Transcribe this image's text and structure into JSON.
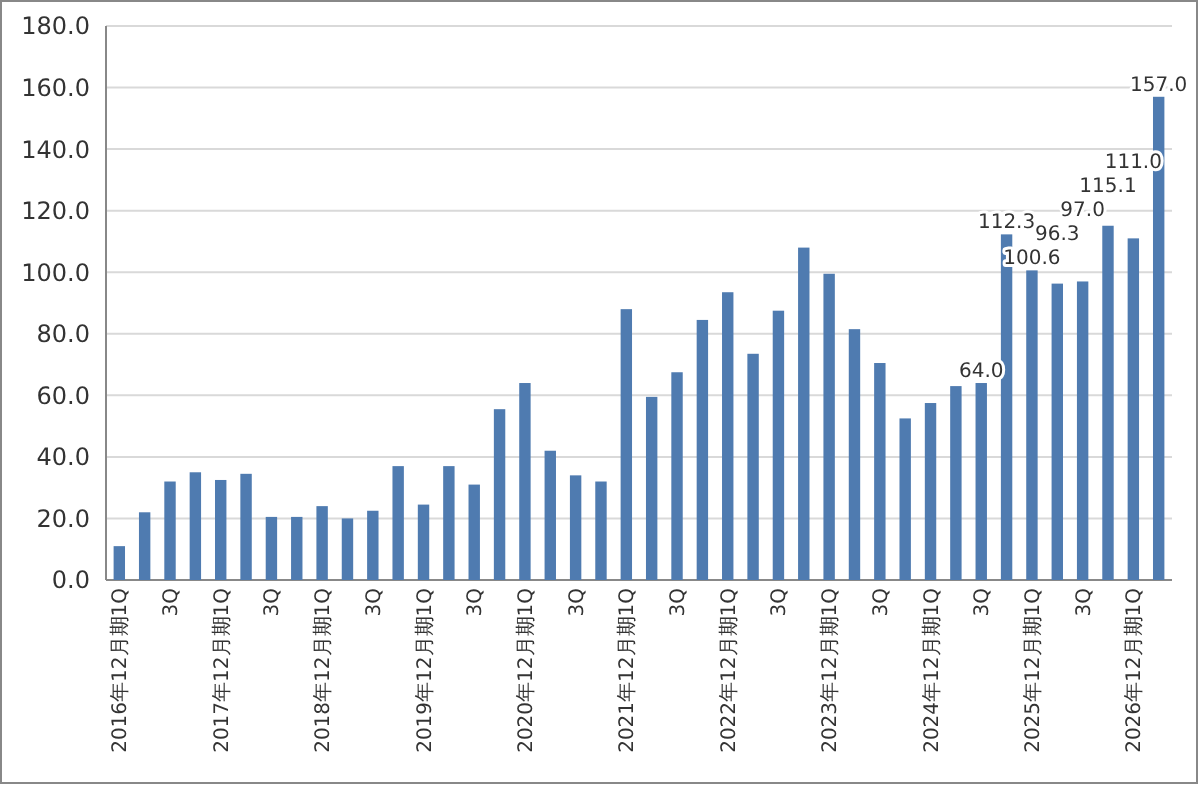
{
  "chart_data": {
    "type": "bar",
    "categories": [
      "2016年12月期1Q",
      null,
      "3Q",
      null,
      "2017年12月期1Q",
      null,
      "3Q",
      null,
      "2018年12月期1Q",
      null,
      "3Q",
      null,
      "2019年12月期1Q",
      null,
      "3Q",
      null,
      "2020年12月期1Q",
      null,
      "3Q",
      null,
      "2021年12月期1Q",
      null,
      "3Q",
      null,
      "2022年12月期1Q",
      null,
      "3Q",
      null,
      "2023年12月期1Q",
      null,
      "3Q",
      null,
      "2024年12月期1Q",
      null,
      "3Q",
      null,
      "2025年12月期1Q",
      null,
      "3Q",
      null,
      "2026年12月期1Q",
      null
    ],
    "values": [
      11,
      22,
      32,
      35,
      32.5,
      34.5,
      20.5,
      20.5,
      24,
      20,
      22.5,
      37,
      24.5,
      37,
      31,
      55.5,
      64,
      42,
      34,
      32,
      88,
      59.5,
      67.5,
      84.5,
      93.5,
      73.5,
      87.5,
      108,
      99.5,
      81.5,
      70.5,
      52.5,
      57.5,
      63,
      64.0,
      112.3,
      100.6,
      96.3,
      97.0,
      115.1,
      111.0,
      157.0
    ],
    "value_labels": [
      null,
      null,
      null,
      null,
      null,
      null,
      null,
      null,
      null,
      null,
      null,
      null,
      null,
      null,
      null,
      null,
      null,
      null,
      null,
      null,
      null,
      null,
      null,
      null,
      null,
      null,
      null,
      null,
      null,
      null,
      null,
      null,
      null,
      null,
      "64.0",
      "112.3",
      "100.6",
      "96.3",
      "97.0",
      "115.1",
      "111.0",
      "157.0"
    ],
    "color": "#4f7bb0",
    "ylim": [
      0,
      180
    ],
    "yticks": [
      {
        "value": 0,
        "label": "0.0"
      },
      {
        "value": 20,
        "label": "20.0"
      },
      {
        "value": 40,
        "label": "40.0"
      },
      {
        "value": 60,
        "label": "60.0"
      },
      {
        "value": 80,
        "label": "80.0"
      },
      {
        "value": 100,
        "label": "100.0"
      },
      {
        "value": 120,
        "label": "120.0"
      },
      {
        "value": 140,
        "label": "140.0"
      },
      {
        "value": 160,
        "label": "160.0"
      },
      {
        "value": 180,
        "label": "180.0"
      }
    ],
    "grid": "y"
  }
}
